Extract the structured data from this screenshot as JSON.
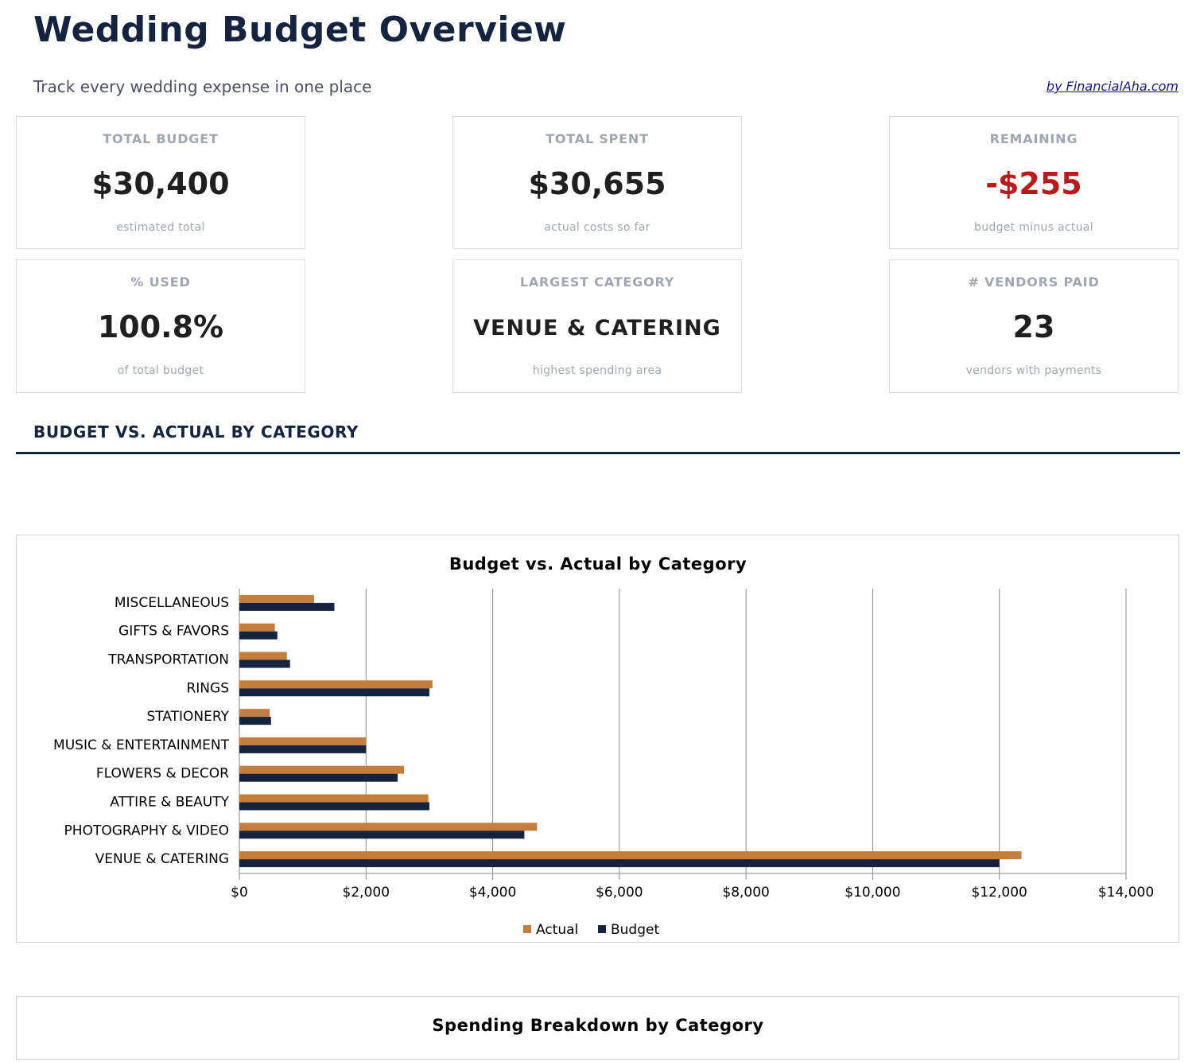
{
  "header": {
    "title": "Wedding Budget Overview",
    "subtitle": "Track every wedding expense in one place",
    "credit": "by FinancialAha.com"
  },
  "kpis": [
    {
      "label": "TOTAL BUDGET",
      "value": "$30,400",
      "note": "estimated total",
      "color": "#1f1f1f"
    },
    {
      "label": "TOTAL SPENT",
      "value": "$30,655",
      "note": "actual costs so far",
      "color": "#1f1f1f"
    },
    {
      "label": "REMAINING",
      "value": "-$255",
      "note": "budget minus actual",
      "color": "#b71c1c"
    },
    {
      "label": "% USED",
      "value": "100.8%",
      "note": "of total budget",
      "color": "#1f1f1f"
    },
    {
      "label": "LARGEST CATEGORY",
      "value": "VENUE & CATERING",
      "note": "highest spending area",
      "color": "#1f1f1f"
    },
    {
      "label": "# VENDORS PAID",
      "value": "23",
      "note": "vendors with payments",
      "color": "#1f1f1f"
    }
  ],
  "section_title": "BUDGET VS. ACTUAL BY CATEGORY",
  "chart_data": [
    {
      "type": "hbar",
      "title": "Budget vs. Actual by Category",
      "categories": [
        "VENUE & CATERING",
        "PHOTOGRAPHY & VIDEO",
        "ATTIRE & BEAUTY",
        "FLOWERS & DECOR",
        "MUSIC & ENTERTAINMENT",
        "STATIONERY",
        "RINGS",
        "TRANSPORTATION",
        "GIFTS & FAVORS",
        "MISCELLANEOUS"
      ],
      "series": [
        {
          "name": "Actual",
          "color": "#c47f3e",
          "values": [
            12350,
            4700,
            2985,
            2600,
            2000,
            480,
            3050,
            750,
            560,
            1180
          ]
        },
        {
          "name": "Budget",
          "color": "#15233f",
          "values": [
            12000,
            4500,
            3000,
            2500,
            2000,
            500,
            3000,
            800,
            600,
            1500
          ]
        }
      ],
      "xlim": [
        0,
        14000
      ],
      "xticks": [
        {
          "value": 0,
          "label": "$0"
        },
        {
          "value": 2000,
          "label": "$2,000"
        },
        {
          "value": 4000,
          "label": "$4,000"
        },
        {
          "value": 6000,
          "label": "$6,000"
        },
        {
          "value": 8000,
          "label": "$8,000"
        },
        {
          "value": 10000,
          "label": "$10,000"
        },
        {
          "value": 12000,
          "label": "$12,000"
        },
        {
          "value": 14000,
          "label": "$14,000"
        }
      ],
      "grid": true,
      "legend": "bottom"
    },
    {
      "type": "pie",
      "title": "Spending Breakdown by Category"
    }
  ]
}
